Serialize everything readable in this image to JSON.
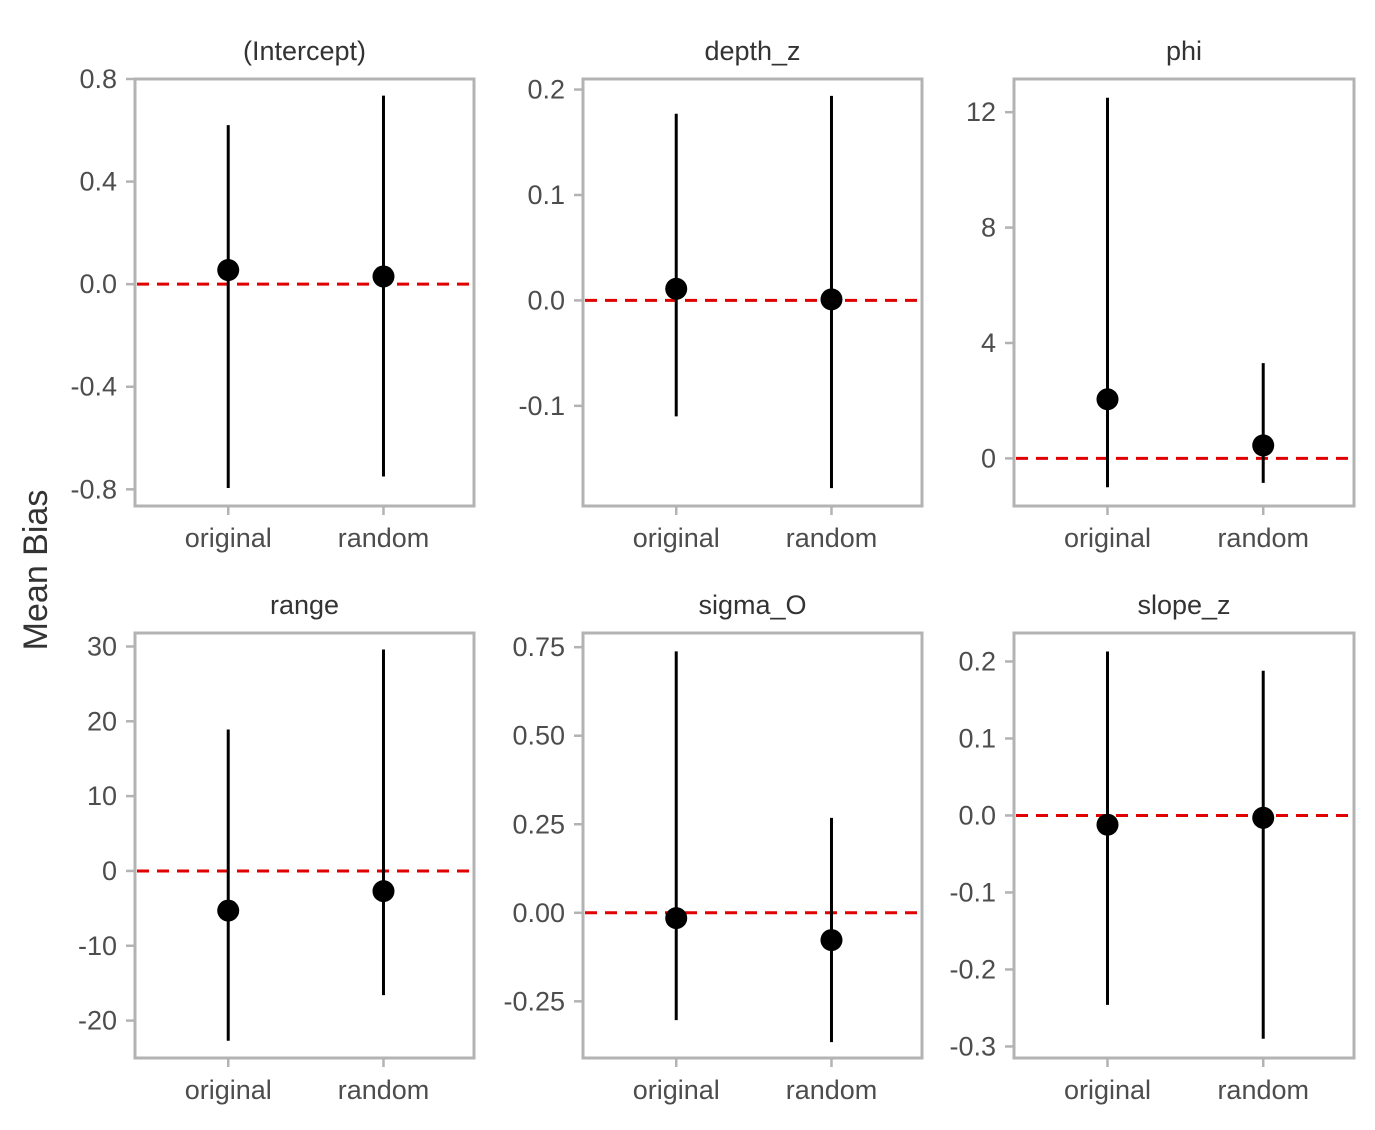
{
  "chart_data": {
    "type": "errorbar-facets",
    "ylabel": "Mean Bias",
    "xlabel": "",
    "reference_line": {
      "y": 0,
      "color": "#e00000",
      "style": "dashed"
    },
    "colors": {
      "point": "#000000",
      "bar": "#000000",
      "frame": "#b3b3b3",
      "text": "#4d4d4d"
    },
    "categories": [
      "original",
      "random"
    ],
    "panels": [
      {
        "title": "(Intercept)",
        "ylim": [
          -0.865,
          0.8
        ],
        "yticks": [
          0.8,
          0.4,
          0.0,
          -0.4,
          -0.8
        ],
        "ytick_labels": [
          "0.8",
          "0.4",
          "0.0",
          "-0.4",
          "-0.8"
        ],
        "points": [
          {
            "category": "original",
            "mean": 0.055,
            "lower": -0.795,
            "upper": 0.62
          },
          {
            "category": "random",
            "mean": 0.03,
            "lower": -0.75,
            "upper": 0.735
          }
        ]
      },
      {
        "title": "depth_z",
        "ylim": [
          -0.195,
          0.21
        ],
        "yticks": [
          0.2,
          0.1,
          0.0,
          -0.1
        ],
        "ytick_labels": [
          "0.2",
          "0.1",
          "0.0",
          "-0.1"
        ],
        "points": [
          {
            "category": "original",
            "mean": 0.011,
            "lower": -0.11,
            "upper": 0.177
          },
          {
            "category": "random",
            "mean": 0.001,
            "lower": -0.178,
            "upper": 0.194
          }
        ]
      },
      {
        "title": "phi",
        "ylim": [
          -1.65,
          13.15
        ],
        "yticks": [
          12,
          8,
          4,
          0
        ],
        "ytick_labels": [
          "12",
          "8",
          "4",
          "0"
        ],
        "points": [
          {
            "category": "original",
            "mean": 2.05,
            "lower": -1.0,
            "upper": 12.5
          },
          {
            "category": "random",
            "mean": 0.45,
            "lower": -0.85,
            "upper": 3.3
          }
        ]
      },
      {
        "title": "range",
        "ylim": [
          -25.0,
          31.8
        ],
        "yticks": [
          30,
          20,
          10,
          0,
          -10,
          -20
        ],
        "ytick_labels": [
          "30",
          "20",
          "10",
          "0",
          "-10",
          "-20"
        ],
        "points": [
          {
            "category": "original",
            "mean": -5.3,
            "lower": -22.7,
            "upper": 18.9
          },
          {
            "category": "random",
            "mean": -2.7,
            "lower": -16.6,
            "upper": 29.6
          }
        ]
      },
      {
        "title": "sigma_O",
        "ylim": [
          -0.41,
          0.79
        ],
        "yticks": [
          0.75,
          0.5,
          0.25,
          0.0,
          -0.25
        ],
        "ytick_labels": [
          "0.75",
          "0.50",
          "0.25",
          "0.00",
          "-0.25"
        ],
        "points": [
          {
            "category": "original",
            "mean": -0.015,
            "lower": -0.303,
            "upper": 0.738
          },
          {
            "category": "random",
            "mean": -0.077,
            "lower": -0.365,
            "upper": 0.268
          }
        ]
      },
      {
        "title": "slope_z",
        "ylim": [
          -0.315,
          0.237
        ],
        "yticks": [
          0.2,
          0.1,
          0.0,
          -0.1,
          -0.2,
          -0.3
        ],
        "ytick_labels": [
          "0.2",
          "0.1",
          "0.0",
          "-0.1",
          "-0.2",
          "-0.3"
        ],
        "points": [
          {
            "category": "original",
            "mean": -0.012,
            "lower": -0.246,
            "upper": 0.213
          },
          {
            "category": "random",
            "mean": -0.003,
            "lower": -0.29,
            "upper": 0.188
          }
        ]
      }
    ]
  }
}
